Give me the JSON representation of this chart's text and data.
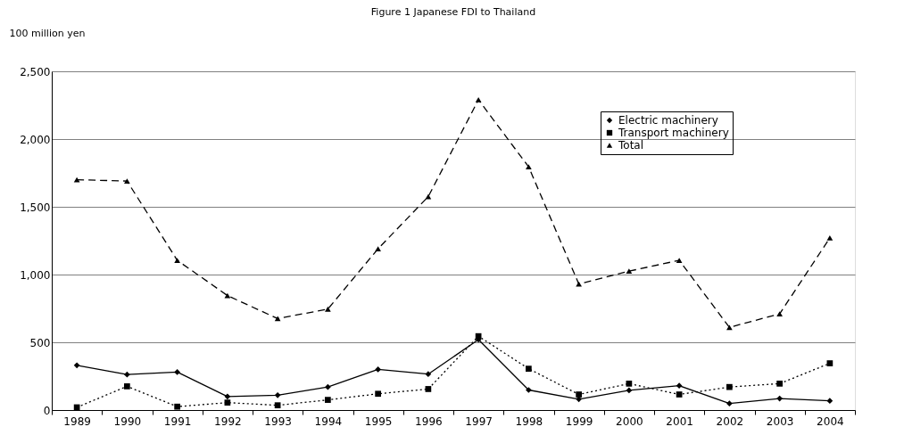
{
  "chart_data": {
    "type": "line",
    "title": "Figure 1 Japanese FDI to Thailand",
    "ylabel": "100 million yen",
    "categories": [
      "1989",
      "1990",
      "1991",
      "1992",
      "1993",
      "1994",
      "1995",
      "1996",
      "1997",
      "1998",
      "1999",
      "2000",
      "2001",
      "2002",
      "2003",
      "2004"
    ],
    "series": [
      {
        "name": "Electric machinery",
        "color": "#000000",
        "marker": "diamond",
        "line_style": "solid",
        "values": [
          330,
          262,
          280,
          100,
          110,
          170,
          300,
          265,
          520,
          148,
          80,
          145,
          180,
          48,
          85,
          68
        ]
      },
      {
        "name": "Transport machinery",
        "color": "#000000",
        "marker": "square",
        "line_style": "dotted",
        "values": [
          20,
          175,
          25,
          55,
          35,
          75,
          120,
          155,
          545,
          305,
          115,
          195,
          115,
          170,
          195,
          345
        ]
      },
      {
        "name": "Total",
        "color": "#000000",
        "marker": "triangle",
        "line_style": "dashed",
        "values": [
          1700,
          1690,
          1105,
          845,
          675,
          745,
          1190,
          1575,
          2290,
          1795,
          930,
          1025,
          1105,
          610,
          710,
          1270
        ]
      }
    ],
    "ylim": [
      0,
      2500
    ],
    "yticks": [
      0,
      500,
      {
        "value": 1000,
        "label": "1,000"
      },
      {
        "value": 1500,
        "label": "1,500"
      },
      {
        "value": 2000,
        "label": "2,000"
      },
      {
        "value": 2500,
        "label": "2,500"
      }
    ],
    "grid": "y",
    "legend": "top right"
  }
}
